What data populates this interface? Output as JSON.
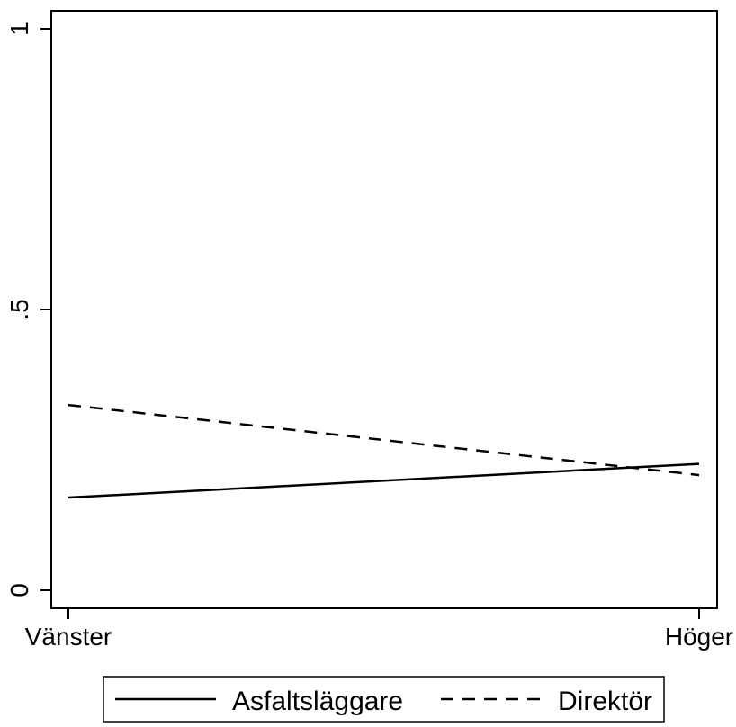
{
  "chart_data": {
    "type": "line",
    "title": "",
    "xlabel": "",
    "ylabel": "",
    "categories": [
      "Vänster",
      "Höger"
    ],
    "ylim": [
      0,
      1
    ],
    "yticks": [
      {
        "value": 0,
        "label": "0"
      },
      {
        "value": 0.5,
        "label": ".5"
      },
      {
        "value": 1,
        "label": "1"
      }
    ],
    "series": [
      {
        "name": "Asfaltsläggare",
        "values": [
          0.165,
          0.225
        ],
        "style": "solid",
        "color": "#000000"
      },
      {
        "name": "Direktör",
        "values": [
          0.33,
          0.205
        ],
        "style": "dashed",
        "color": "#000000"
      }
    ],
    "grid": false,
    "legend_position": "bottom"
  }
}
